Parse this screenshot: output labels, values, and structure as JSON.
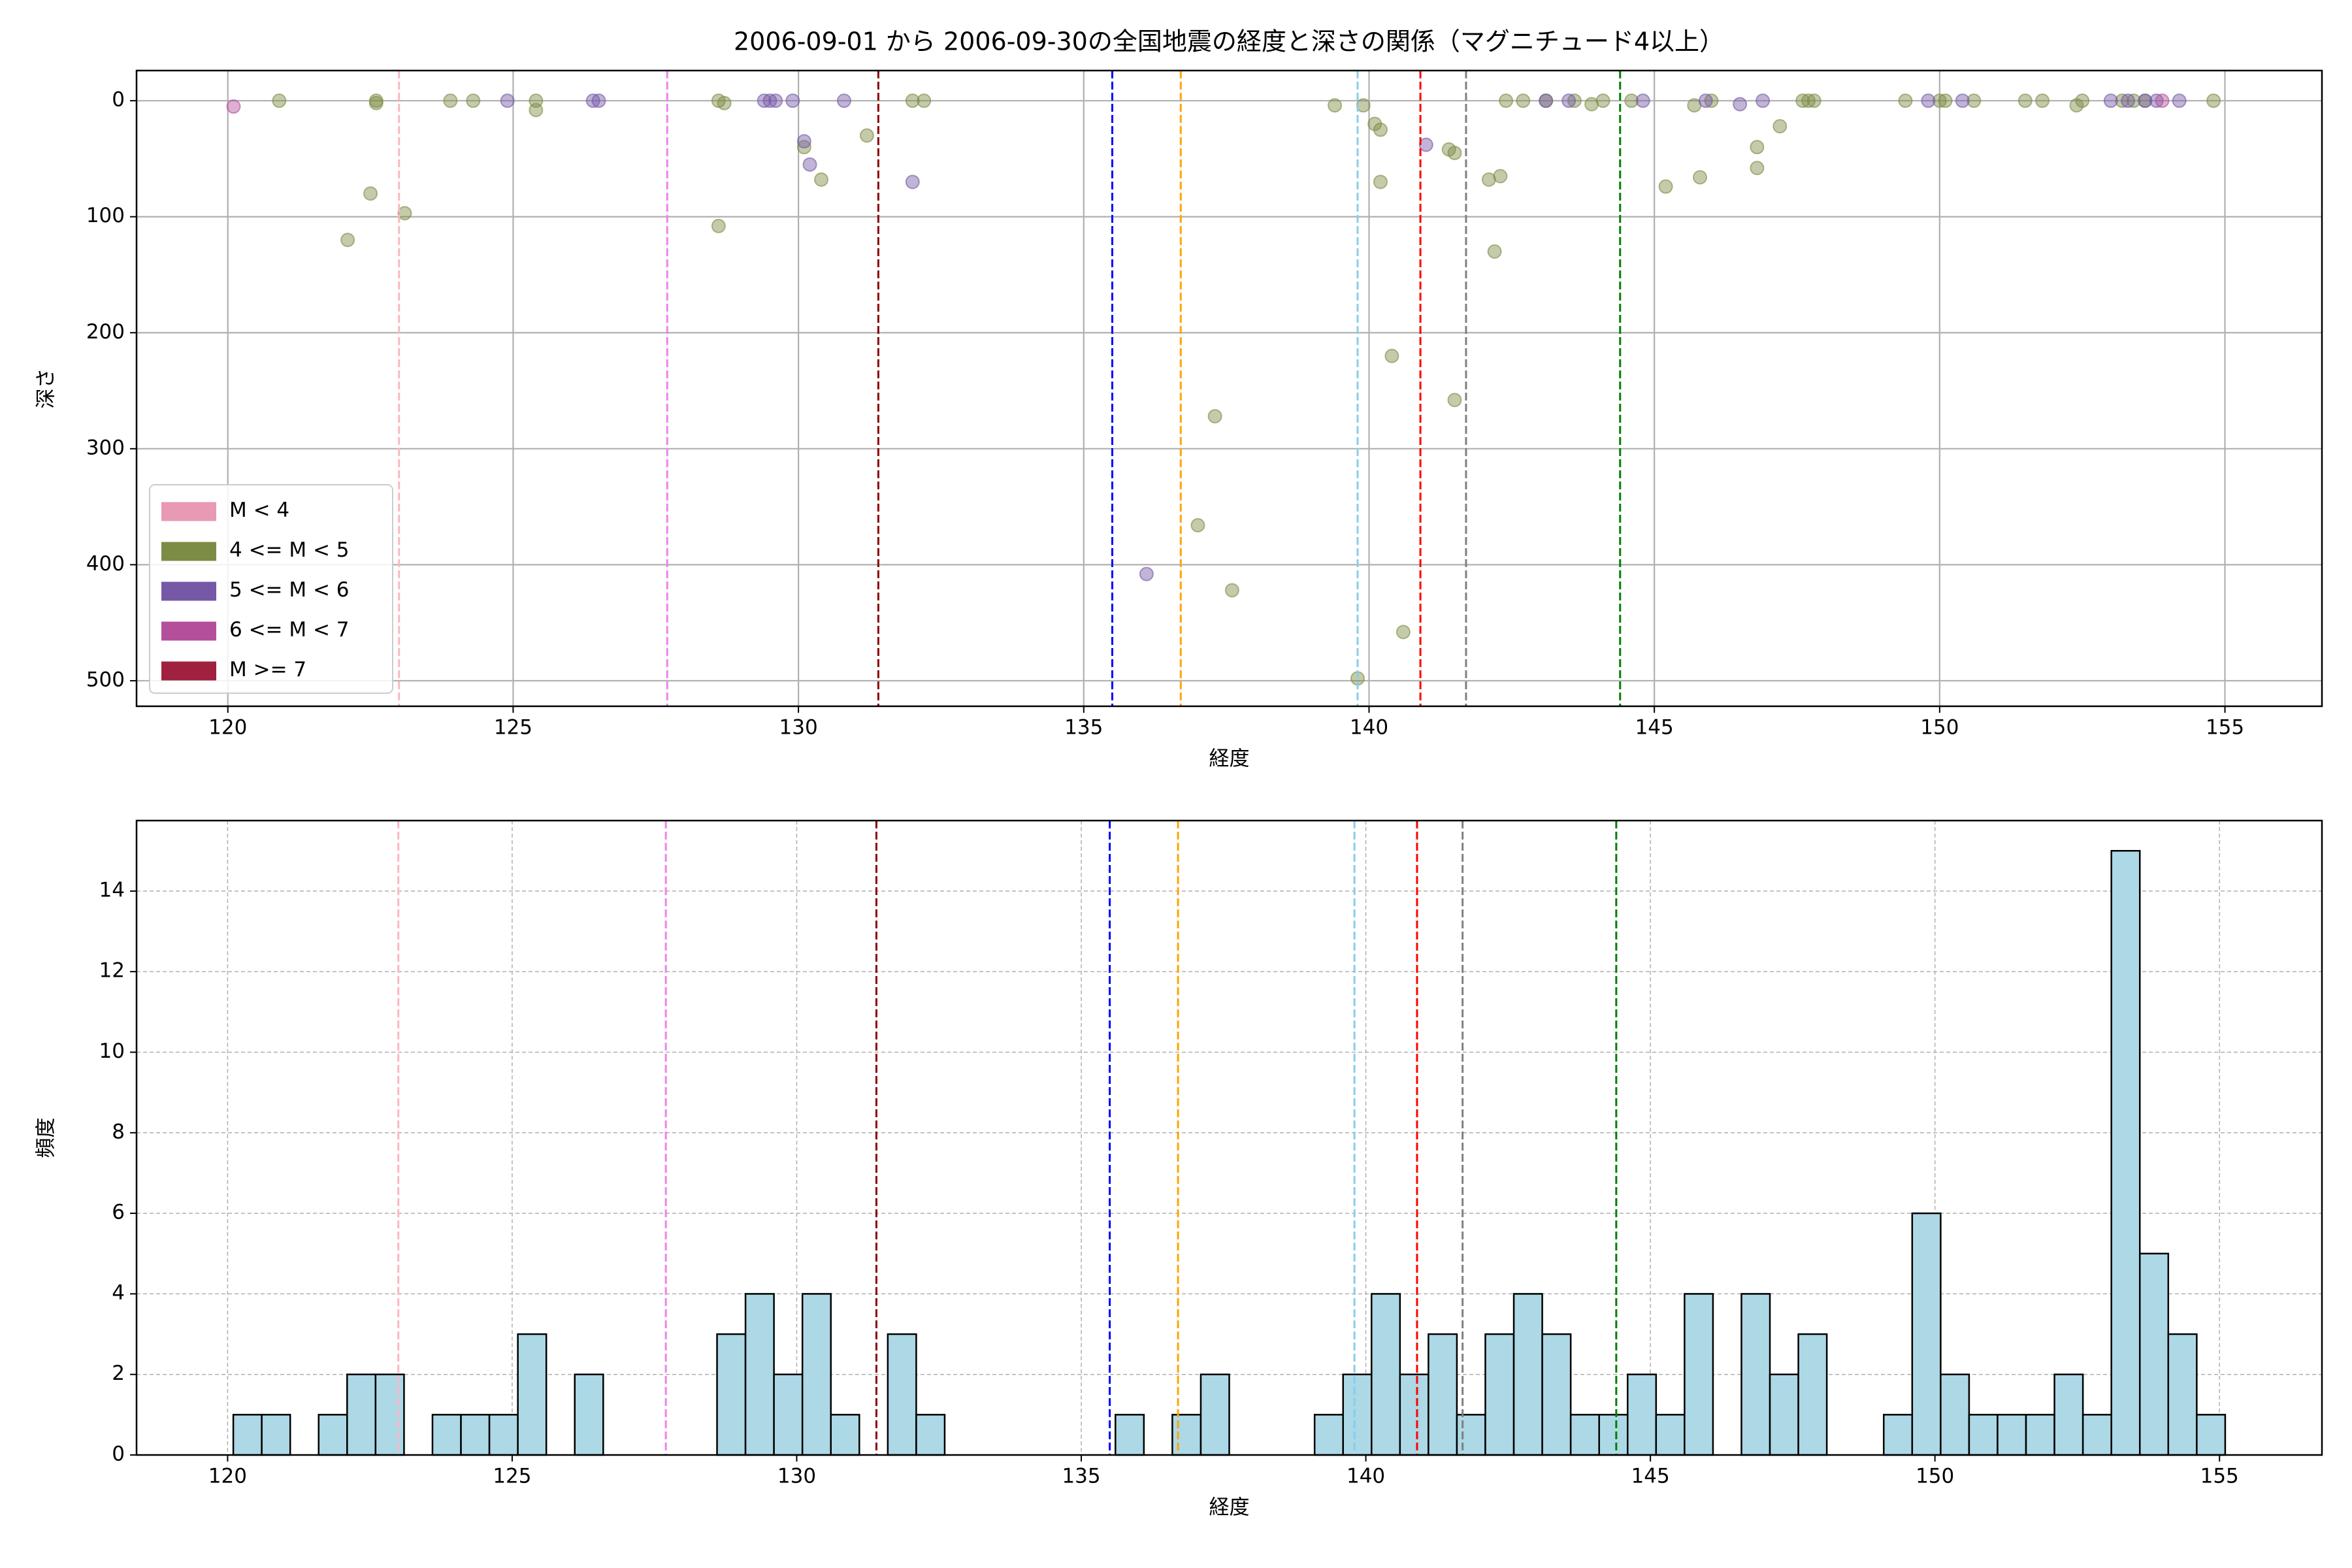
{
  "chart_data": [
    {
      "type": "scatter",
      "title": "2006-09-01 から 2006-09-30の全国地震の経度と深さの関係（マグニチュード4以上）",
      "x_label": "経度",
      "y_label": "深さ",
      "xlim": [
        118.4,
        156.7
      ],
      "ylim": [
        -26,
        522
      ],
      "y_inverted": true,
      "xticks": [
        120,
        125,
        130,
        135,
        140,
        145,
        150,
        155
      ],
      "yticks": [
        0,
        100,
        200,
        300,
        400,
        500
      ],
      "grid": true,
      "grid_style": "solid",
      "legend": "lower left",
      "series": [
        {
          "name": "M < 4",
          "color": "#e899b4",
          "x": [],
          "values": []
        },
        {
          "name": "4 <= M < 5",
          "color": "#7d8c45",
          "x": [
            120.9,
            122.6,
            122.6,
            122.5,
            122.1,
            123.1,
            123.9,
            124.3,
            125.4,
            125.4,
            128.6,
            128.7,
            128.6,
            130.1,
            130.4,
            131.2,
            132.0,
            132.2,
            137.3,
            137.0,
            137.6,
            139.4,
            139.9,
            140.1,
            140.2,
            140.2,
            140.4,
            140.6,
            139.8,
            141.4,
            141.5,
            141.5,
            142.1,
            142.3,
            142.2,
            142.4,
            142.7,
            143.1,
            143.6,
            143.9,
            144.1,
            144.6,
            145.2,
            145.7,
            145.8,
            146.0,
            146.8,
            146.8,
            147.2,
            147.6,
            147.8,
            147.7,
            149.4,
            150.1,
            150.0,
            150.6,
            151.5,
            151.8,
            152.4,
            152.5,
            153.2,
            153.4,
            153.6,
            154.8
          ],
          "values": [
            0,
            0,
            2,
            80,
            120,
            97,
            0,
            0,
            0,
            8,
            0,
            2,
            108,
            40,
            68,
            30,
            0,
            0,
            272,
            366,
            422,
            4,
            4,
            20,
            25,
            70,
            220,
            458,
            498,
            42,
            45,
            258,
            68,
            65,
            130,
            0,
            0,
            0,
            0,
            3,
            0,
            0,
            74,
            4,
            66,
            0,
            58,
            40,
            22,
            0,
            0,
            0,
            0,
            0,
            0,
            0,
            0,
            0,
            4,
            0,
            0,
            0,
            0,
            0
          ]
        },
        {
          "name": "5 <= M < 6",
          "color": "#7559a6",
          "x": [
            124.9,
            126.4,
            126.5,
            129.4,
            129.5,
            129.6,
            129.9,
            130.1,
            130.2,
            130.8,
            132.0,
            136.1,
            141.0,
            143.1,
            143.5,
            144.8,
            145.9,
            146.5,
            146.9,
            149.8,
            150.4,
            153.0,
            153.3,
            153.6,
            153.8,
            154.2
          ],
          "values": [
            0,
            0,
            0,
            0,
            0,
            0,
            0,
            35,
            55,
            0,
            70,
            408,
            38,
            0,
            0,
            0,
            0,
            3,
            0,
            0,
            0,
            0,
            0,
            0,
            0,
            0
          ]
        },
        {
          "name": "6 <= M < 7",
          "color": "#b44f9c",
          "x": [
            120.1,
            153.9
          ],
          "values": [
            5,
            0
          ]
        },
        {
          "name": "M >= 7",
          "color": "#a0213f",
          "x": [],
          "values": []
        }
      ],
      "reference_lines": [
        {
          "x": 123.0,
          "color": "#ffb6c1"
        },
        {
          "x": 127.7,
          "color": "#ee82ee"
        },
        {
          "x": 131.4,
          "color": "#8b0000"
        },
        {
          "x": 135.5,
          "color": "#0000ff"
        },
        {
          "x": 136.7,
          "color": "#ffa500"
        },
        {
          "x": 139.8,
          "color": "#87ceeb"
        },
        {
          "x": 140.9,
          "color": "#ff0000"
        },
        {
          "x": 141.7,
          "color": "#808080"
        },
        {
          "x": 144.4,
          "color": "#008000"
        }
      ]
    },
    {
      "type": "histogram",
      "x_label": "経度",
      "y_label": "頻度",
      "xlim": [
        118.4,
        156.8
      ],
      "ylim": [
        0,
        15.75
      ],
      "xticks": [
        120,
        125,
        130,
        135,
        140,
        145,
        150,
        155
      ],
      "yticks": [
        0,
        2,
        4,
        6,
        8,
        10,
        12,
        14
      ],
      "grid": true,
      "grid_style": "dashed",
      "color": "#add8e6",
      "bins": [
        120.1,
        120.6,
        121.1,
        121.6,
        122.1,
        122.6,
        123.1,
        123.6,
        124.1,
        124.6,
        125.1,
        125.6,
        126.1,
        126.6,
        127.1,
        127.6,
        128.1,
        128.6,
        129.1,
        129.6,
        130.1,
        130.6,
        131.1,
        131.6,
        132.1,
        132.6,
        133.1,
        133.6,
        134.1,
        134.6,
        135.1,
        135.6,
        136.1,
        136.6,
        137.1,
        137.6,
        138.1,
        138.6,
        139.1,
        139.6,
        140.1,
        140.6,
        141.1,
        141.6,
        142.1,
        142.6,
        143.1,
        143.6,
        144.1,
        144.6,
        145.1,
        145.6,
        146.1,
        146.6,
        147.1,
        147.6,
        148.1,
        148.6,
        149.1,
        149.6,
        150.1,
        150.6,
        151.1,
        151.6,
        152.1,
        152.6,
        153.1,
        153.6,
        154.1,
        154.6,
        155.1
      ],
      "values": [
        1,
        1,
        0,
        1,
        2,
        2,
        0,
        1,
        1,
        1,
        3,
        0,
        2,
        0,
        0,
        0,
        0,
        3,
        4,
        2,
        4,
        1,
        0,
        3,
        1,
        0,
        0,
        0,
        0,
        0,
        0,
        1,
        0,
        1,
        2,
        0,
        0,
        0,
        1,
        2,
        4,
        2,
        3,
        1,
        3,
        4,
        3,
        1,
        1,
        2,
        1,
        4,
        0,
        4,
        2,
        3,
        0,
        0,
        1,
        6,
        2,
        1,
        1,
        1,
        2,
        1,
        15,
        5,
        3,
        1
      ],
      "reference_lines": [
        {
          "x": 123.0,
          "color": "#ffb6c1"
        },
        {
          "x": 127.7,
          "color": "#ee82ee"
        },
        {
          "x": 131.4,
          "color": "#8b0000"
        },
        {
          "x": 135.5,
          "color": "#0000ff"
        },
        {
          "x": 136.7,
          "color": "#ffa500"
        },
        {
          "x": 139.8,
          "color": "#87ceeb"
        },
        {
          "x": 140.9,
          "color": "#ff0000"
        },
        {
          "x": 141.7,
          "color": "#808080"
        },
        {
          "x": 144.4,
          "color": "#008000"
        }
      ]
    }
  ]
}
